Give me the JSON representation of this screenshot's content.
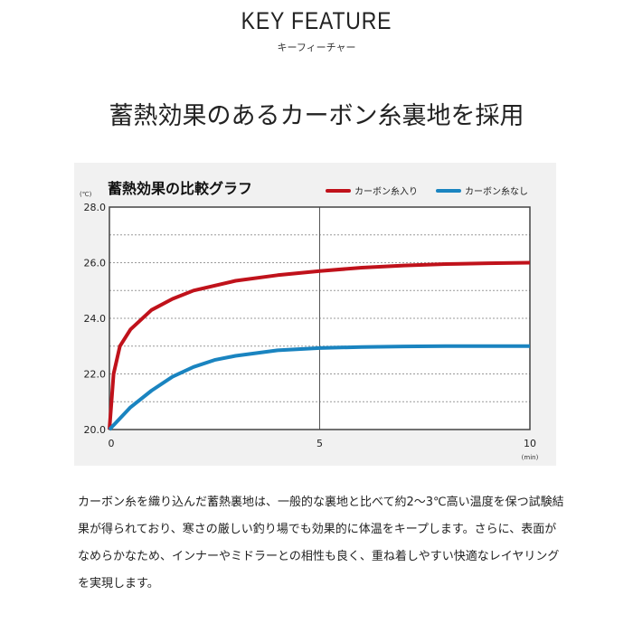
{
  "header": {
    "title": "KEY FEATURE",
    "subtitle": "キーフィーチャー"
  },
  "heading": "蓄熱効果のあるカーボン糸裏地を採用",
  "chart_data": {
    "type": "line",
    "title": "蓄熱効果の比較グラフ",
    "ylabel": "(℃)",
    "xlabel": "(min)",
    "xlim": [
      0,
      10
    ],
    "ylim": [
      20,
      28
    ],
    "xticks": [
      "0",
      "5",
      "10"
    ],
    "yticks": [
      "20.0",
      "22.0",
      "24.0",
      "26.0",
      "28.0"
    ],
    "grid": "dotted horizontal at 1℃ steps, solid vertical at 5",
    "legend": "top-right",
    "series": [
      {
        "name": "カーボン糸入り",
        "color": "#c0121b",
        "x": [
          0,
          0.1,
          0.25,
          0.5,
          1,
          1.5,
          2,
          3,
          4,
          5,
          6,
          7,
          8,
          9,
          10
        ],
        "y": [
          20,
          22.0,
          23.0,
          23.6,
          24.3,
          24.7,
          25.0,
          25.35,
          25.55,
          25.7,
          25.82,
          25.9,
          25.95,
          25.98,
          26.0
        ]
      },
      {
        "name": "カーボン糸なし",
        "color": "#1a84c0",
        "x": [
          0,
          0.5,
          1,
          1.5,
          2,
          2.5,
          3,
          4,
          5,
          6,
          7,
          8,
          9,
          10
        ],
        "y": [
          20,
          20.8,
          21.4,
          21.9,
          22.25,
          22.5,
          22.65,
          22.85,
          22.93,
          22.97,
          22.99,
          23.0,
          23.0,
          23.0
        ]
      }
    ]
  },
  "description": "カーボン糸を織り込んだ蓄熱裏地は、一般的な裏地と比べて約2〜3℃高い温度を保つ試験結果が得られており、寒さの厳しい釣り場でも効果的に体温をキープします。さらに、表面がなめらかなため、インナーやミドラーとの相性も良く、重ね着しやすい快適なレイヤリングを実現します。"
}
